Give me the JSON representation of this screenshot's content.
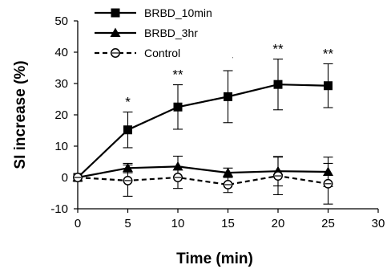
{
  "chart_data": {
    "type": "line",
    "xlabel": "Time (min)",
    "ylabel": "SI increase (%)",
    "xlim": [
      0,
      30
    ],
    "ylim": [
      -10,
      50
    ],
    "x_ticks": [
      "0",
      "5",
      "10",
      "15",
      "20",
      "25",
      "30"
    ],
    "y_ticks": [
      "-10",
      "0",
      "10",
      "20",
      "30",
      "40",
      "50"
    ],
    "grid": false,
    "legend_position": "top-left",
    "series": [
      {
        "name": "BRBD_10min",
        "marker": "square",
        "line_style": "solid",
        "x": [
          0,
          5,
          10,
          15,
          20,
          25
        ],
        "y": [
          0,
          15.2,
          22.5,
          25.8,
          29.7,
          29.3
        ],
        "error": [
          0,
          5.7,
          7.1,
          8.3,
          8.1,
          7.0
        ],
        "significance": [
          "",
          "*",
          "**",
          "**",
          "**",
          "**"
        ]
      },
      {
        "name": "BRBD_3hr",
        "marker": "triangle",
        "line_style": "solid",
        "x": [
          0,
          5,
          10,
          15,
          20,
          25
        ],
        "y": [
          0,
          3.0,
          3.5,
          1.5,
          2.0,
          1.8
        ],
        "error": [
          0,
          1.5,
          3.3,
          1.5,
          4.7,
          4.7
        ]
      },
      {
        "name": "Control",
        "marker": "open-circle",
        "line_style": "dashed",
        "x": [
          0,
          5,
          10,
          15,
          20,
          25
        ],
        "y": [
          0,
          -1.0,
          0,
          -2.3,
          0.5,
          -2.0
        ],
        "error": [
          0,
          5.0,
          3.5,
          2.5,
          6.0,
          6.5
        ]
      }
    ]
  }
}
